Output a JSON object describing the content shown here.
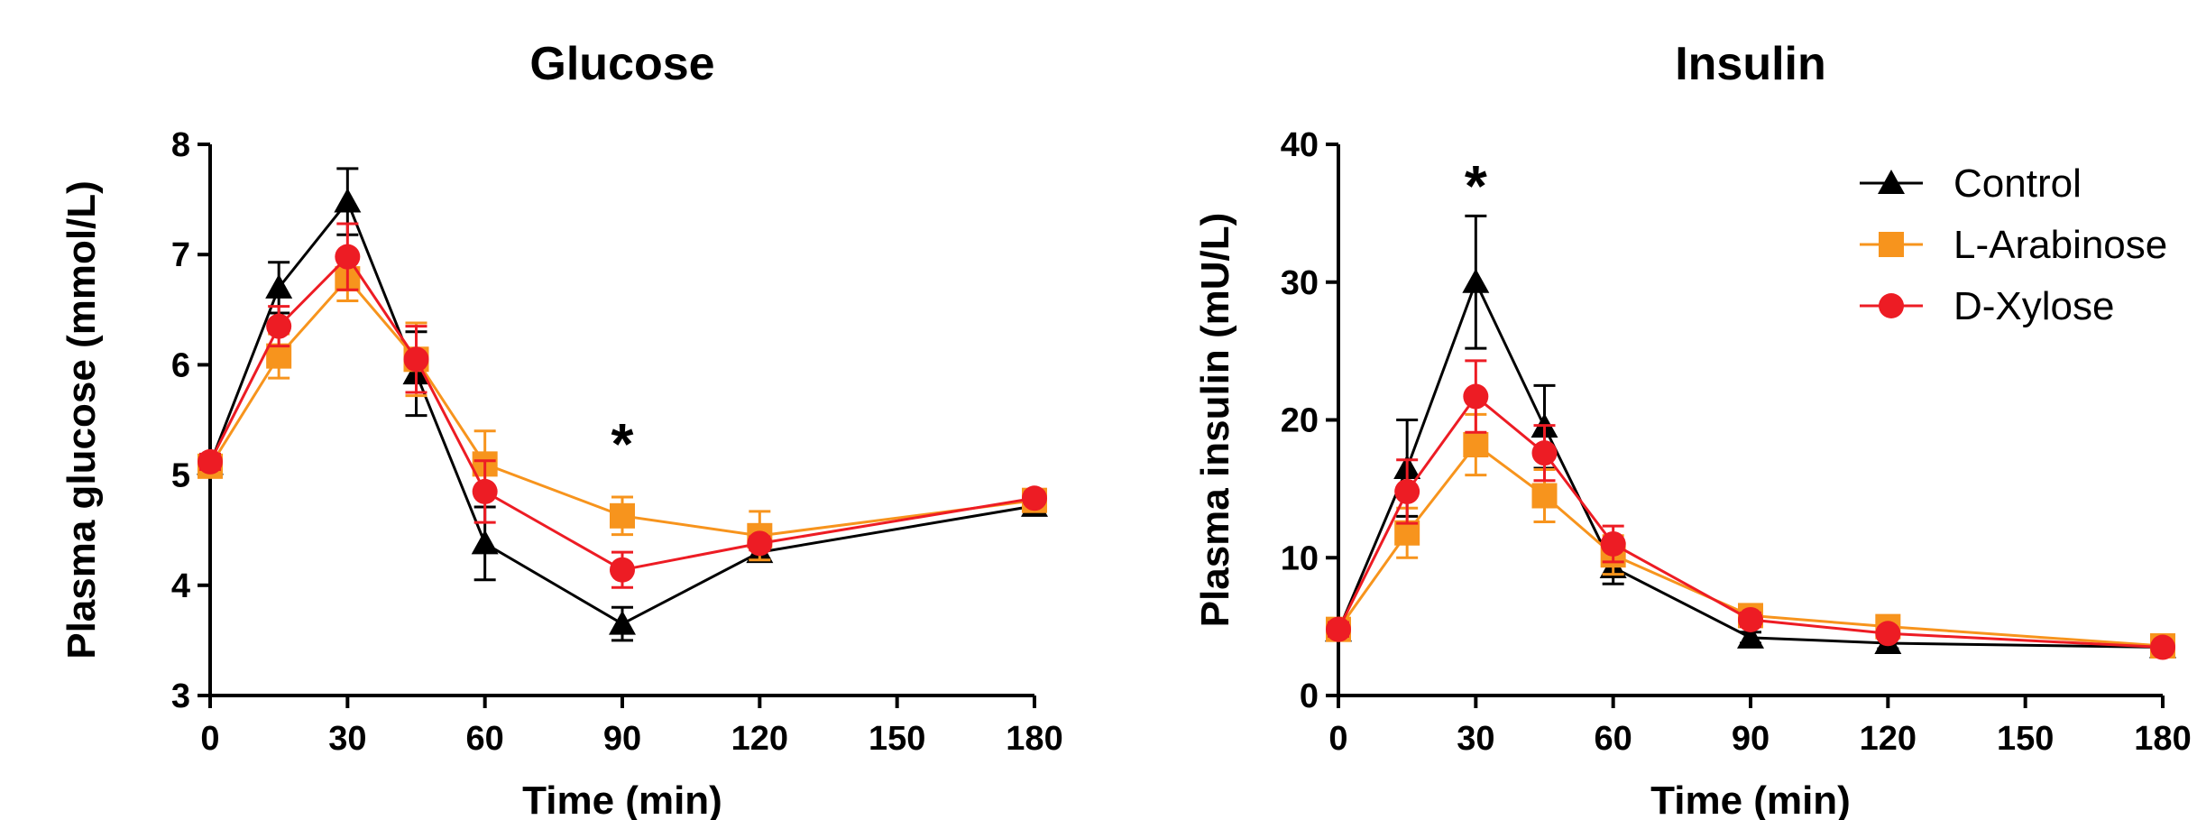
{
  "chart_data": [
    {
      "type": "line",
      "title": "Glucose",
      "xlabel": "Time (min)",
      "ylabel": "Plasma glucose (mmol/L)",
      "xlim": [
        0,
        180
      ],
      "ylim": [
        3,
        8
      ],
      "xticks": [
        0,
        30,
        60,
        90,
        120,
        150,
        180
      ],
      "yticks": [
        3,
        4,
        5,
        6,
        7,
        8
      ],
      "grid": false,
      "annotations": [
        {
          "text": "*",
          "x": 90,
          "y": 5.35
        }
      ],
      "series": [
        {
          "name": "Control",
          "color": "#000000",
          "marker": "triangle",
          "x": [
            0,
            15,
            30,
            45,
            60,
            90,
            120,
            180
          ],
          "y": [
            5.1,
            6.7,
            7.48,
            5.92,
            4.38,
            3.65,
            4.3,
            4.72
          ],
          "err": [
            0.08,
            0.23,
            0.3,
            0.38,
            0.33,
            0.15,
            0.06,
            0.05
          ]
        },
        {
          "name": "L-Arabinose",
          "color": "#F7941D",
          "marker": "square",
          "x": [
            0,
            15,
            30,
            45,
            60,
            90,
            120,
            180
          ],
          "y": [
            5.08,
            6.08,
            6.78,
            6.05,
            5.1,
            4.63,
            4.45,
            4.77
          ],
          "err": [
            0.08,
            0.2,
            0.2,
            0.33,
            0.3,
            0.17,
            0.22,
            0.05
          ]
        },
        {
          "name": "D-Xylose",
          "color": "#ED1C24",
          "marker": "circle",
          "x": [
            0,
            15,
            30,
            45,
            60,
            90,
            120,
            180
          ],
          "y": [
            5.12,
            6.35,
            6.98,
            6.05,
            4.85,
            4.14,
            4.38,
            4.79
          ],
          "err": [
            0.07,
            0.18,
            0.3,
            0.3,
            0.28,
            0.16,
            0.06,
            0.05
          ]
        }
      ]
    },
    {
      "type": "line",
      "title": "Insulin",
      "xlabel": "Time (min)",
      "ylabel": "Plasma insulin (mU/L)",
      "xlim": [
        0,
        180
      ],
      "ylim": [
        0,
        40
      ],
      "xticks": [
        0,
        30,
        60,
        90,
        120,
        150,
        180
      ],
      "yticks": [
        0,
        10,
        20,
        30,
        40
      ],
      "grid": false,
      "legend": "top-right",
      "annotations": [
        {
          "text": "*",
          "x": 30,
          "y": 37.5
        }
      ],
      "series": [
        {
          "name": "Control",
          "color": "#000000",
          "marker": "triangle",
          "x": [
            0,
            15,
            30,
            45,
            60,
            90,
            120,
            180
          ],
          "y": [
            4.7,
            16.5,
            30.0,
            19.5,
            9.3,
            4.2,
            3.8,
            3.5
          ],
          "err": [
            0.5,
            3.5,
            4.8,
            3.0,
            1.2,
            0.4,
            0.4,
            0.3
          ]
        },
        {
          "name": "L-Arabinose",
          "color": "#F7941D",
          "marker": "square",
          "x": [
            0,
            15,
            30,
            45,
            60,
            90,
            120,
            180
          ],
          "y": [
            4.8,
            11.8,
            18.2,
            14.5,
            10.2,
            5.8,
            5.0,
            3.6
          ],
          "err": [
            0.5,
            1.8,
            2.2,
            1.9,
            1.4,
            0.6,
            0.5,
            0.3
          ]
        },
        {
          "name": "D-Xylose",
          "color": "#ED1C24",
          "marker": "circle",
          "x": [
            0,
            15,
            30,
            45,
            60,
            90,
            120,
            180
          ],
          "y": [
            4.8,
            14.8,
            21.7,
            17.6,
            11.0,
            5.5,
            4.5,
            3.5
          ],
          "err": [
            0.5,
            2.3,
            2.6,
            2.0,
            1.3,
            0.5,
            0.4,
            0.3
          ]
        }
      ]
    }
  ]
}
